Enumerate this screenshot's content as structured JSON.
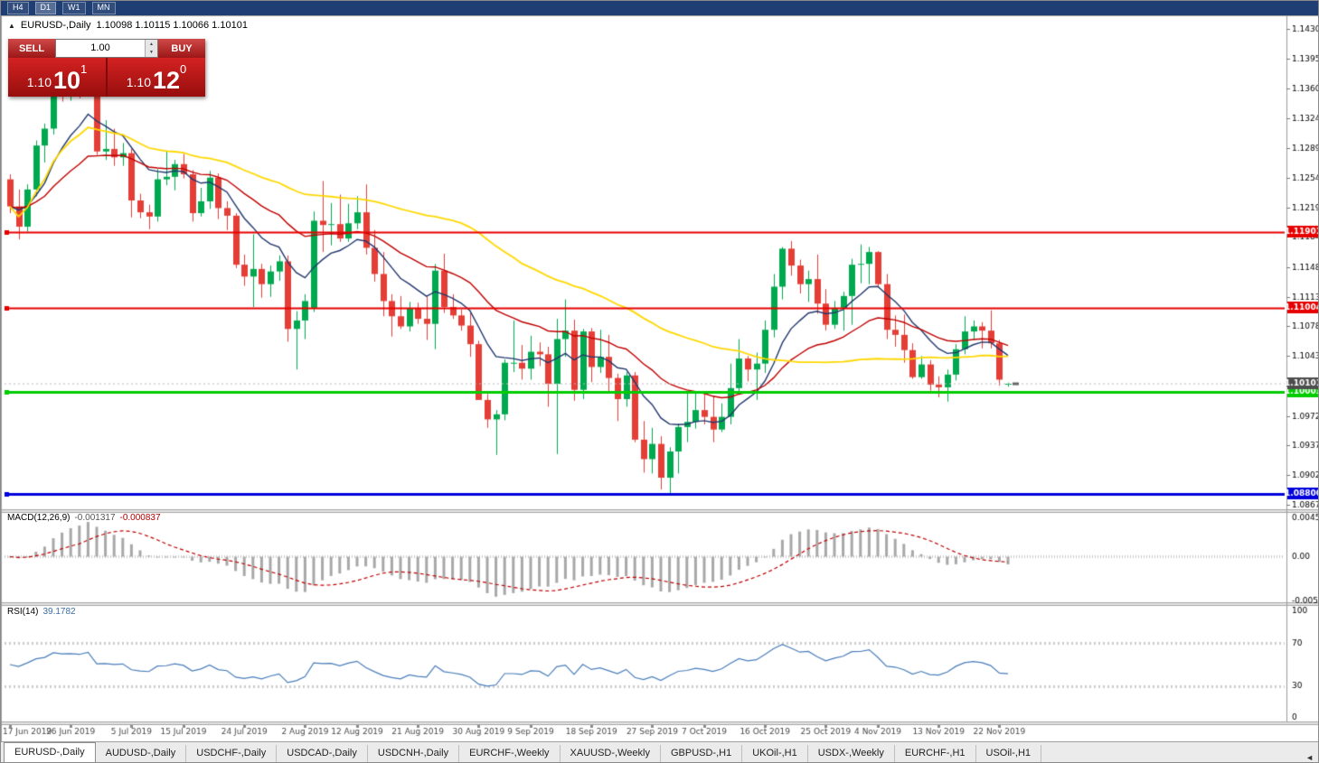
{
  "toolbar": {
    "periods": [
      "H4",
      "D1",
      "W1",
      "MN"
    ],
    "active": "D1"
  },
  "window": {
    "toggle_arrow": "▲",
    "symbol_title": "EURUSD-,Daily",
    "ohlc": "1.10098 1.10115 1.10066 1.10101"
  },
  "trade_panel": {
    "sell_label": "SELL",
    "buy_label": "BUY",
    "volume": "1.00",
    "spinner_up": "▲",
    "spinner_down": "▼",
    "sell_price_small": "1.10",
    "sell_price_big": "10",
    "sell_price_sup": "1",
    "buy_price_small": "1.10",
    "buy_price_big": "12",
    "buy_price_sup": "0"
  },
  "chart_data": {
    "type": "candlestick-with-indicators",
    "symbol": "EURUSD-",
    "timeframe": "Daily",
    "up_color": "#00a94f",
    "down_color": "#e43e36",
    "y_ticks": [
      "1.14300",
      "1.13950",
      "1.13600",
      "1.13240",
      "1.12890",
      "1.12540",
      "1.12190",
      "1.11840",
      "1.11480",
      "1.11130",
      "1.10780",
      "1.10430",
      "1.10080",
      "1.09720",
      "1.09370",
      "1.09020",
      "1.08670"
    ],
    "x_labels": [
      [
        0,
        "17 Jun 2019"
      ],
      [
        7,
        "26 Jun 2019"
      ],
      [
        14,
        "5 Jul 2019"
      ],
      [
        20,
        "15 Jul 2019"
      ],
      [
        27,
        "24 Jul 2019"
      ],
      [
        34,
        "2 Aug 2019"
      ],
      [
        40,
        "12 Aug 2019"
      ],
      [
        47,
        "21 Aug 2019"
      ],
      [
        54,
        "30 Aug 2019"
      ],
      [
        60,
        "9 Sep 2019"
      ],
      [
        67,
        "18 Sep 2019"
      ],
      [
        74,
        "27 Sep 2019"
      ],
      [
        80,
        "7 Oct 2019"
      ],
      [
        87,
        "16 Oct 2019"
      ],
      [
        94,
        "25 Oct 2019"
      ],
      [
        100,
        "4 Nov 2019"
      ],
      [
        107,
        "13 Nov 2019"
      ],
      [
        114,
        "22 Nov 2019"
      ]
    ],
    "candles": [
      [
        1.1252,
        1.1258,
        1.1212,
        1.122
      ],
      [
        1.122,
        1.124,
        1.1181,
        1.1196
      ],
      [
        1.1196,
        1.1246,
        1.119,
        1.124
      ],
      [
        1.124,
        1.1298,
        1.1232,
        1.1292
      ],
      [
        1.1292,
        1.1318,
        1.1272,
        1.1312
      ],
      [
        1.1312,
        1.139,
        1.1305,
        1.1378
      ],
      [
        1.1378,
        1.1412,
        1.1344,
        1.1368
      ],
      [
        1.1368,
        1.1391,
        1.1345,
        1.1372
      ],
      [
        1.1372,
        1.1382,
        1.1348,
        1.1365
      ],
      [
        1.1365,
        1.14,
        1.1355,
        1.1392
      ],
      [
        1.1388,
        1.1394,
        1.1281,
        1.1285
      ],
      [
        1.1285,
        1.1322,
        1.1275,
        1.1288
      ],
      [
        1.1288,
        1.1312,
        1.1268,
        1.1278
      ],
      [
        1.1278,
        1.1295,
        1.1268,
        1.1283
      ],
      [
        1.1283,
        1.1288,
        1.1207,
        1.1227
      ],
      [
        1.1227,
        1.1235,
        1.1206,
        1.1213
      ],
      [
        1.1213,
        1.1222,
        1.1193,
        1.1208
      ],
      [
        1.1208,
        1.1264,
        1.1202,
        1.1252
      ],
      [
        1.1252,
        1.1286,
        1.1245,
        1.1255
      ],
      [
        1.1255,
        1.1275,
        1.1239,
        1.127
      ],
      [
        1.127,
        1.1282,
        1.1253,
        1.1258
      ],
      [
        1.1258,
        1.1263,
        1.1202,
        1.1212
      ],
      [
        1.1212,
        1.1242,
        1.1208,
        1.1226
      ],
      [
        1.1226,
        1.1262,
        1.1217,
        1.1254
      ],
      [
        1.1254,
        1.1259,
        1.1205,
        1.1218
      ],
      [
        1.1218,
        1.1226,
        1.1192,
        1.1209
      ],
      [
        1.1209,
        1.1212,
        1.1147,
        1.1151
      ],
      [
        1.1151,
        1.1163,
        1.1126,
        1.1137
      ],
      [
        1.1137,
        1.1187,
        1.1101,
        1.1146
      ],
      [
        1.1146,
        1.1152,
        1.1112,
        1.1128
      ],
      [
        1.1128,
        1.115,
        1.1113,
        1.1143
      ],
      [
        1.1143,
        1.1162,
        1.1132,
        1.1155
      ],
      [
        1.1155,
        1.1162,
        1.106,
        1.1075
      ],
      [
        1.1075,
        1.1096,
        1.1027,
        1.1085
      ],
      [
        1.1085,
        1.1116,
        1.1063,
        1.1108
      ],
      [
        1.11,
        1.1214,
        1.1095,
        1.1203
      ],
      [
        1.1203,
        1.125,
        1.1166,
        1.1198
      ],
      [
        1.1198,
        1.1224,
        1.1174,
        1.1199
      ],
      [
        1.1199,
        1.1234,
        1.1178,
        1.1182
      ],
      [
        1.1182,
        1.1223,
        1.1178,
        1.12
      ],
      [
        1.12,
        1.1232,
        1.1193,
        1.1213
      ],
      [
        1.1213,
        1.1246,
        1.1163,
        1.1171
      ],
      [
        1.1171,
        1.1192,
        1.1131,
        1.114
      ],
      [
        1.114,
        1.1166,
        1.109,
        1.1108
      ],
      [
        1.1108,
        1.1116,
        1.1066,
        1.109
      ],
      [
        1.109,
        1.1114,
        1.1075,
        1.1078
      ],
      [
        1.1078,
        1.1107,
        1.1072,
        1.1099
      ],
      [
        1.1099,
        1.1106,
        1.1081,
        1.1087
      ],
      [
        1.1087,
        1.1113,
        1.1062,
        1.1081
      ],
      [
        1.1081,
        1.1152,
        1.1051,
        1.1144
      ],
      [
        1.1144,
        1.1164,
        1.1094,
        1.1101
      ],
      [
        1.1101,
        1.1116,
        1.1087,
        1.1091
      ],
      [
        1.1091,
        1.1098,
        1.1073,
        1.1079
      ],
      [
        1.1079,
        1.1094,
        1.1042,
        1.1057
      ],
      [
        1.1057,
        1.1061,
        1.0992,
        1.0991
      ],
      [
        1.0991,
        1.0998,
        1.0958,
        1.0968
      ],
      [
        1.0968,
        1.0979,
        1.0926,
        1.0974
      ],
      [
        1.0974,
        1.1039,
        1.0967,
        1.1035
      ],
      [
        1.1035,
        1.1085,
        1.1024,
        1.1035
      ],
      [
        1.1035,
        1.1056,
        1.1015,
        1.1028
      ],
      [
        1.1028,
        1.1067,
        1.1015,
        1.1048
      ],
      [
        1.1048,
        1.1059,
        1.1031,
        1.1045
      ],
      [
        1.1045,
        1.1054,
        1.0983,
        1.101
      ],
      [
        1.101,
        1.1087,
        1.0927,
        1.1063
      ],
      [
        1.1063,
        1.111,
        1.1042,
        1.1073
      ],
      [
        1.1073,
        1.1086,
        1.099,
        1.1003
      ],
      [
        1.1003,
        1.1075,
        1.0992,
        1.1072
      ],
      [
        1.1072,
        1.1076,
        1.1012,
        1.103
      ],
      [
        1.103,
        1.1074,
        1.1023,
        1.1042
      ],
      [
        1.1042,
        1.1068,
        1.1,
        1.1017
      ],
      [
        1.1017,
        1.1022,
        1.0966,
        1.0992
      ],
      [
        1.0992,
        1.1024,
        1.0983,
        1.102
      ],
      [
        1.102,
        1.1024,
        1.0941,
        1.0944
      ],
      [
        1.0944,
        1.0966,
        1.0905,
        1.0921
      ],
      [
        1.0921,
        1.0958,
        1.0904,
        1.0939
      ],
      [
        1.0939,
        1.0948,
        1.0885,
        1.0899
      ],
      [
        1.0899,
        1.0935,
        1.0879,
        1.093
      ],
      [
        1.093,
        1.0963,
        1.0904,
        1.0959
      ],
      [
        1.0959,
        1.0999,
        1.0941,
        1.0965
      ],
      [
        1.0965,
        1.0999,
        1.0957,
        1.0979
      ],
      [
        1.0979,
        1.0999,
        1.0962,
        1.0971
      ],
      [
        1.0971,
        1.0996,
        1.0941,
        1.0956
      ],
      [
        1.0956,
        1.0987,
        1.0953,
        1.0971
      ],
      [
        1.0971,
        1.1034,
        1.0962,
        1.1005
      ],
      [
        1.1005,
        1.1063,
        1.1001,
        1.104
      ],
      [
        1.104,
        1.1043,
        1.1013,
        1.1027
      ],
      [
        1.1027,
        1.1047,
        1.0991,
        1.1034
      ],
      [
        1.1034,
        1.1085,
        1.1023,
        1.1074
      ],
      [
        1.1074,
        1.114,
        1.1065,
        1.1125
      ],
      [
        1.1125,
        1.1172,
        1.111,
        1.117
      ],
      [
        1.117,
        1.1179,
        1.1138,
        1.115
      ],
      [
        1.115,
        1.1157,
        1.1117,
        1.1128
      ],
      [
        1.1128,
        1.1144,
        1.1107,
        1.1134
      ],
      [
        1.1134,
        1.1163,
        1.1093,
        1.1105
      ],
      [
        1.1105,
        1.1122,
        1.1073,
        1.108
      ],
      [
        1.108,
        1.1108,
        1.1075,
        1.11
      ],
      [
        1.11,
        1.1119,
        1.1073,
        1.1114
      ],
      [
        1.1114,
        1.1158,
        1.108,
        1.1151
      ],
      [
        1.1151,
        1.1175,
        1.1129,
        1.1152
      ],
      [
        1.1152,
        1.1172,
        1.1128,
        1.1166
      ],
      [
        1.1166,
        1.1167,
        1.1124,
        1.1128
      ],
      [
        1.1128,
        1.114,
        1.1063,
        1.1074
      ],
      [
        1.1074,
        1.1091,
        1.1054,
        1.1068
      ],
      [
        1.1068,
        1.1092,
        1.1035,
        1.105
      ],
      [
        1.105,
        1.1058,
        1.1016,
        1.1018
      ],
      [
        1.1018,
        1.1043,
        1.1016,
        1.1033
      ],
      [
        1.1033,
        1.1038,
        1.1002,
        1.1009
      ],
      [
        1.1009,
        1.1019,
        1.0994,
        1.1006
      ],
      [
        1.1006,
        1.1027,
        1.0989,
        1.1021
      ],
      [
        1.1021,
        1.1057,
        1.1014,
        1.1051
      ],
      [
        1.1051,
        1.109,
        1.1045,
        1.1072
      ],
      [
        1.1072,
        1.1085,
        1.1062,
        1.1078
      ],
      [
        1.1078,
        1.1083,
        1.1052,
        1.1073
      ],
      [
        1.1073,
        1.1097,
        1.1052,
        1.1058
      ],
      [
        1.1058,
        1.1062,
        1.1008,
        1.1015
      ],
      [
        1.10098,
        1.10115,
        1.10066,
        1.10101
      ]
    ],
    "hlines": [
      {
        "price": 1.11901,
        "label": "1.11901",
        "color": "#e60000",
        "width": 2
      },
      {
        "price": 1.11004,
        "label": "1.11004",
        "color": "#e60000",
        "width": 2
      },
      {
        "price": 1.10003,
        "label": "1.10003",
        "color": "#00cc00",
        "width": 3
      },
      {
        "price": 1.088,
        "label": "1.08800",
        "color": "#0000dd",
        "width": 3
      }
    ],
    "bid": {
      "price": 1.10101,
      "label": "1.10101",
      "tag_color": "#4d4d4d"
    },
    "moving_averages": [
      {
        "type": "ema",
        "period": 10,
        "color": "#22386e"
      },
      {
        "type": "ema",
        "period": 25,
        "color": "#c00000"
      },
      {
        "type": "sma",
        "period": 50,
        "color": "#ffd800"
      }
    ],
    "macd": {
      "label": "MACD(12,26,9)",
      "value_main": "-0.001317",
      "value_signal": "-0.000837",
      "fast": 12,
      "slow": 26,
      "signal": 9,
      "scale_ticks": [
        "0.004536",
        "0.00",
        "-0.005206"
      ],
      "hist_color": "#a8a8a8",
      "signal_color": "#c00000"
    },
    "rsi": {
      "label": "RSI(14)",
      "value": "39.1782",
      "period": 14,
      "scale_ticks": [
        100,
        70,
        30,
        0
      ],
      "levels": [
        70,
        30
      ],
      "color": "#4a7ebb"
    }
  },
  "tabs": {
    "active_index": 0,
    "scroll_left_arrow": "◄",
    "items": [
      {
        "label": "EURUSD-,Daily"
      },
      {
        "label": "AUDUSD-,Daily"
      },
      {
        "label": "USDCHF-,Daily"
      },
      {
        "label": "USDCAD-,Daily"
      },
      {
        "label": "USDCNH-,Daily"
      },
      {
        "label": "EURCHF-,Weekly"
      },
      {
        "label": "XAUUSD-,Weekly"
      },
      {
        "label": "GBPUSD-,H1"
      },
      {
        "label": "UKOil-,H1"
      },
      {
        "label": "USDX-,Weekly"
      },
      {
        "label": "EURCHF-,H1"
      },
      {
        "label": "USOil-,H1"
      }
    ]
  }
}
